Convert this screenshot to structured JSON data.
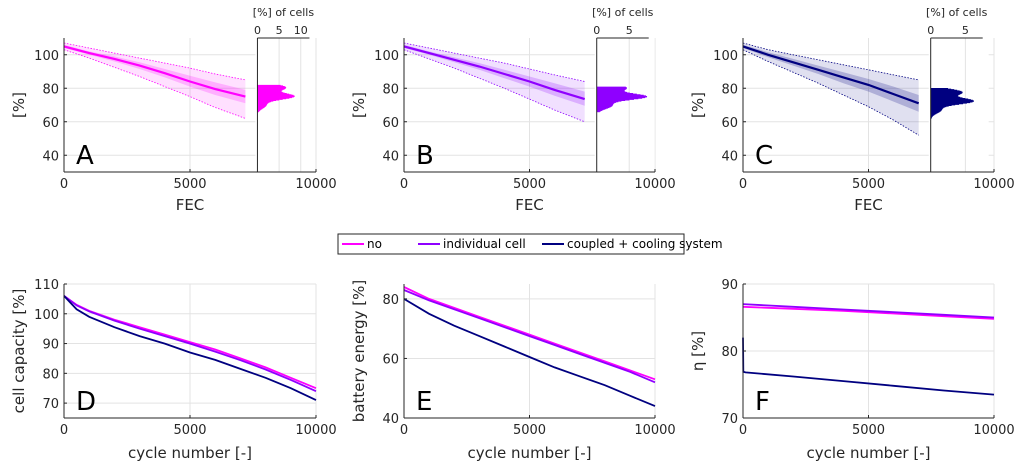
{
  "legend": {
    "items": [
      {
        "label": "no",
        "color": "#ff00ff"
      },
      {
        "label": "individual cell",
        "color": "#8f00ff"
      },
      {
        "label": "coupled + cooling system",
        "color": "#000080"
      }
    ]
  },
  "chart_data": [
    {
      "type": "line",
      "panel": "A",
      "xlabel": "FEC",
      "ylabel": "[%]",
      "xlim": [
        0,
        10000
      ],
      "ylim": [
        30,
        110
      ],
      "xticks": [
        0,
        5000,
        10000
      ],
      "yticks": [
        40,
        60,
        80,
        100
      ],
      "grid": true,
      "color": "#ff00ff",
      "mean": {
        "x": [
          0,
          1000,
          2000,
          3000,
          4000,
          5000,
          6000,
          7200
        ],
        "y": [
          105,
          101,
          97.5,
          93.5,
          89,
          84,
          79.5,
          75
        ]
      },
      "band_inner": {
        "x": [
          0,
          1000,
          2000,
          3000,
          4000,
          5000,
          6000,
          7200
        ],
        "upper": [
          106,
          102,
          99,
          95.5,
          91.5,
          87.5,
          83.5,
          79
        ],
        "lower": [
          104,
          100,
          96,
          91.5,
          86.5,
          81,
          76,
          71
        ]
      },
      "band_outer": {
        "x": [
          0,
          1000,
          2000,
          3000,
          4000,
          5000,
          6000,
          7200
        ],
        "upper": [
          107,
          104,
          101,
          98,
          95,
          92,
          88.5,
          85
        ],
        "lower": [
          103,
          98,
          92.5,
          87,
          81,
          75,
          68.5,
          62
        ]
      },
      "histogram": {
        "xlabel": "[%] of cells",
        "xticks": [
          0,
          5,
          10
        ],
        "xlim": [
          0,
          12
        ],
        "peak_y": 77,
        "peak_x": 9.5,
        "spread": 4.5,
        "y_range": [
          66,
          82
        ]
      }
    },
    {
      "type": "line",
      "panel": "B",
      "xlabel": "FEC",
      "ylabel": "[%]",
      "xlim": [
        0,
        10000
      ],
      "ylim": [
        30,
        110
      ],
      "xticks": [
        0,
        5000,
        10000
      ],
      "yticks": [
        40,
        60,
        80,
        100
      ],
      "grid": true,
      "color": "#8f00ff",
      "mean": {
        "x": [
          0,
          1000,
          2000,
          3000,
          4000,
          5000,
          6000,
          7200
        ],
        "y": [
          105,
          101,
          97,
          93,
          88.5,
          84,
          79,
          73.5
        ]
      },
      "band_inner": {
        "x": [
          0,
          1000,
          2000,
          3000,
          4000,
          5000,
          6000,
          7200
        ],
        "upper": [
          106,
          102,
          98.5,
          95,
          91,
          87,
          83,
          78
        ]
      },
      "band_inner_lower": [
        104,
        100,
        95.5,
        91,
        86,
        81,
        75.5,
        69.5
      ],
      "band_outer": {
        "x": [
          0,
          1000,
          2000,
          3000,
          4000,
          5000,
          6000,
          7200
        ],
        "upper": [
          107,
          104,
          101,
          98,
          95,
          91.5,
          88,
          84
        ],
        "lower": [
          103,
          97.5,
          92,
          86,
          80,
          73.5,
          67,
          60
        ]
      },
      "histogram": {
        "xlabel": "[%] of cells",
        "xticks": [
          0,
          5
        ],
        "xlim": [
          0,
          8
        ],
        "peak_y": 76,
        "peak_x": 8,
        "spread": 4.5,
        "y_range": [
          66,
          81
        ]
      }
    },
    {
      "type": "line",
      "panel": "C",
      "xlabel": "FEC",
      "ylabel": "[%]",
      "xlim": [
        0,
        10000
      ],
      "ylim": [
        30,
        110
      ],
      "xticks": [
        0,
        5000,
        10000
      ],
      "yticks": [
        40,
        60,
        80,
        100
      ],
      "grid": true,
      "color": "#000080",
      "mean": {
        "x": [
          0,
          1000,
          2000,
          3000,
          4000,
          5000,
          6000,
          7000
        ],
        "y": [
          105,
          100,
          95.5,
          91,
          86.5,
          82,
          76.5,
          71
        ]
      },
      "band_inner": {
        "x": [
          0,
          1000,
          2000,
          3000,
          4000,
          5000,
          6000,
          7000
        ],
        "upper": [
          106,
          101.5,
          97.5,
          93.5,
          89.5,
          85.5,
          81,
          76
        ]
      },
      "band_inner_lower": [
        104,
        98.5,
        93.5,
        88.5,
        83,
        78,
        72,
        66
      ],
      "band_outer": {
        "x": [
          0,
          1000,
          2000,
          3000,
          4000,
          5000,
          6000,
          7000
        ],
        "upper": [
          107,
          103,
          100,
          97,
          94,
          91,
          88,
          85
        ],
        "lower": [
          103,
          96,
          89.5,
          83,
          76,
          69,
          61,
          52
        ]
      },
      "histogram": {
        "xlabel": "[%] of cells",
        "xticks": [
          0,
          5
        ],
        "xlim": [
          0,
          7.5
        ],
        "peak_y": 74,
        "peak_x": 6.8,
        "spread": 4.5,
        "y_range": [
          62,
          80
        ]
      }
    },
    {
      "type": "line",
      "panel": "D",
      "xlabel": "cycle number [-]",
      "ylabel": "cell capacity [%]",
      "xlim": [
        0,
        10000
      ],
      "ylim": [
        65,
        110
      ],
      "xticks": [
        0,
        5000,
        10000
      ],
      "yticks": [
        70,
        80,
        90,
        100,
        110
      ],
      "grid": true,
      "series": [
        {
          "name": "no",
          "color": "#ff00ff",
          "x": [
            0,
            500,
            1000,
            2000,
            3000,
            4000,
            5000,
            6000,
            7000,
            8000,
            9000,
            10000
          ],
          "y": [
            106,
            103,
            101,
            98,
            95.5,
            93,
            90.5,
            88,
            85,
            82,
            78.5,
            75
          ]
        },
        {
          "name": "individual cell",
          "color": "#8f00ff",
          "x": [
            0,
            500,
            1000,
            2000,
            3000,
            4000,
            5000,
            6000,
            7000,
            8000,
            9000,
            10000
          ],
          "y": [
            106,
            102.8,
            100.8,
            97.7,
            95,
            92.5,
            90,
            87.3,
            84.4,
            81.3,
            77.8,
            74
          ]
        },
        {
          "name": "coupled + cooling system",
          "color": "#000080",
          "x": [
            0,
            500,
            1000,
            2000,
            3000,
            4000,
            5000,
            6000,
            7000,
            8000,
            9000,
            10000
          ],
          "y": [
            106,
            101.5,
            99,
            95.5,
            92.5,
            90,
            87,
            84.5,
            81.5,
            78.5,
            75,
            71
          ]
        }
      ]
    },
    {
      "type": "line",
      "panel": "E",
      "xlabel": "cycle number [-]",
      "ylabel": "battery energy [%]",
      "xlim": [
        0,
        10000
      ],
      "ylim": [
        40,
        85
      ],
      "xticks": [
        0,
        5000,
        10000
      ],
      "yticks": [
        40,
        60,
        80
      ],
      "grid": true,
      "series": [
        {
          "name": "no",
          "color": "#ff00ff",
          "x": [
            0,
            1000,
            2000,
            3000,
            4000,
            5000,
            6000,
            7000,
            8000,
            9000,
            10000
          ],
          "y": [
            84,
            80,
            77,
            74,
            71,
            68,
            65,
            62,
            59,
            56,
            53
          ]
        },
        {
          "name": "individual cell",
          "color": "#8f00ff",
          "x": [
            0,
            1000,
            2000,
            3000,
            4000,
            5000,
            6000,
            7000,
            8000,
            9000,
            10000
          ],
          "y": [
            83,
            79.5,
            76.5,
            73.5,
            70.5,
            67.5,
            64.5,
            61.5,
            58.5,
            55.5,
            52
          ]
        },
        {
          "name": "coupled + cooling system",
          "color": "#000080",
          "x": [
            0,
            1000,
            2000,
            3000,
            4000,
            5000,
            6000,
            7000,
            8000,
            9000,
            10000
          ],
          "y": [
            80,
            75,
            71,
            67.5,
            64,
            60.5,
            57,
            54,
            51,
            47.5,
            44
          ]
        }
      ]
    },
    {
      "type": "line",
      "panel": "F",
      "xlabel": "cycle number [-]",
      "ylabel": "η [%]",
      "xlim": [
        0,
        10000
      ],
      "ylim": [
        70,
        90
      ],
      "xticks": [
        0,
        5000,
        10000
      ],
      "yticks": [
        70,
        80,
        90
      ],
      "grid": true,
      "series": [
        {
          "name": "no",
          "color": "#ff00ff",
          "x": [
            0,
            2000,
            4000,
            6000,
            8000,
            10000
          ],
          "y": [
            86.6,
            86.3,
            86,
            85.6,
            85.2,
            84.8
          ]
        },
        {
          "name": "individual cell",
          "color": "#8f00ff",
          "x": [
            0,
            2000,
            4000,
            6000,
            8000,
            10000
          ],
          "y": [
            87,
            86.6,
            86.2,
            85.8,
            85.4,
            85
          ]
        },
        {
          "name": "coupled + cooling system",
          "color": "#000080",
          "x": [
            0,
            10,
            100,
            2000,
            4000,
            6000,
            8000,
            10000
          ],
          "y": [
            82,
            76.9,
            76.8,
            76.2,
            75.5,
            74.8,
            74.1,
            73.5
          ]
        }
      ]
    }
  ]
}
